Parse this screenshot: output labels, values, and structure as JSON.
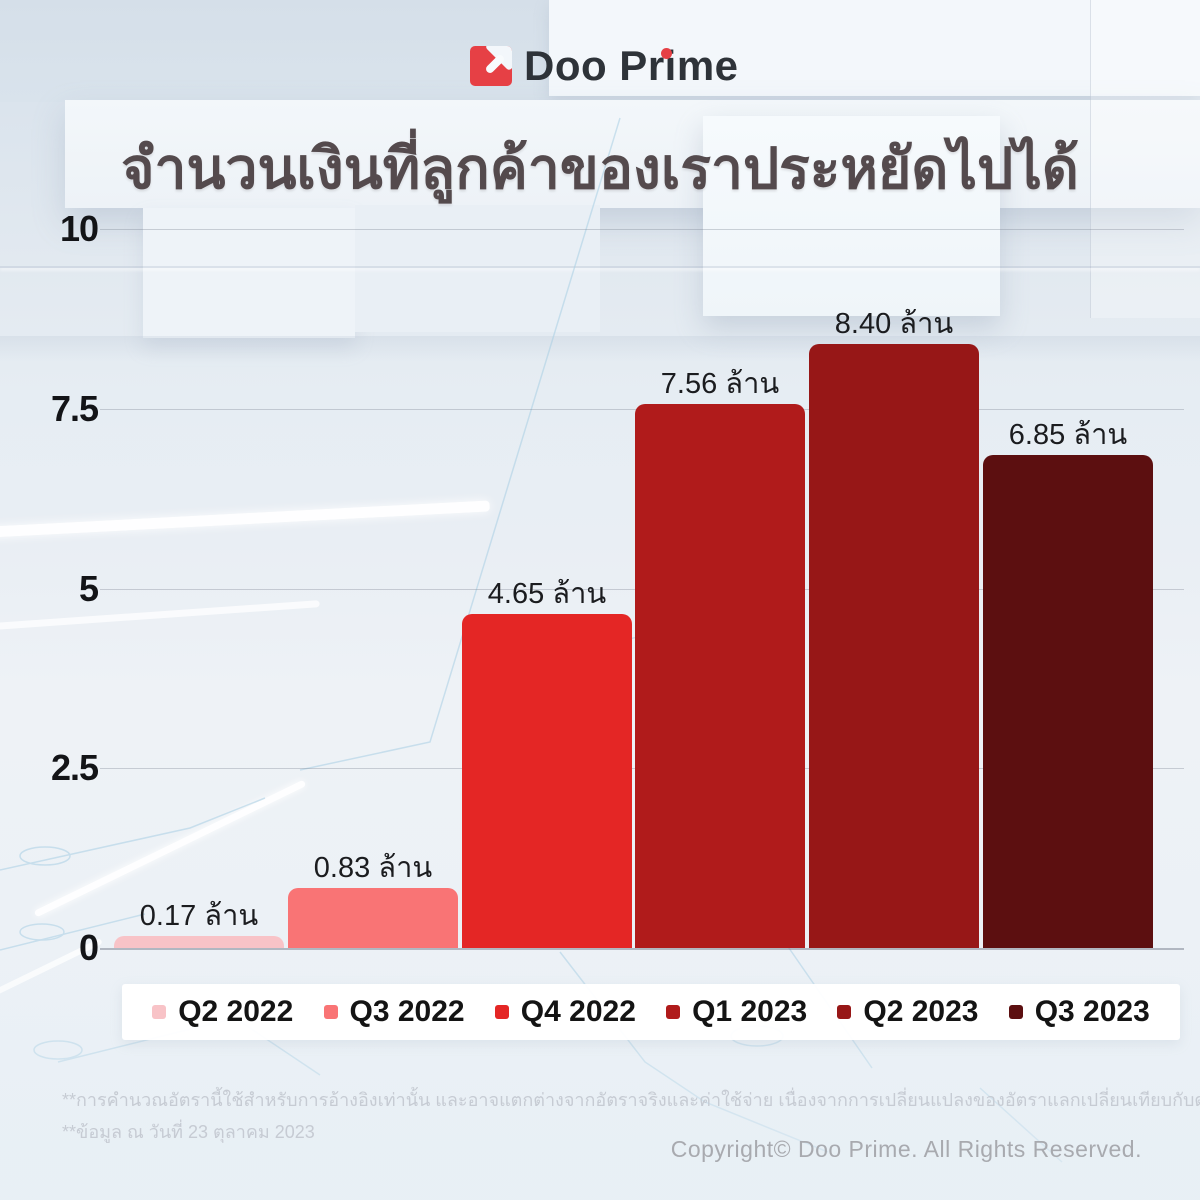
{
  "brand": {
    "name": "Doo Prime"
  },
  "title": "จำนวนเงินที่ลูกค้าของเราประหยัดไปได้",
  "chart_data": {
    "type": "bar",
    "title": "จำนวนเงินที่ลูกค้าของเราประหยัดไปได้",
    "categories": [
      "Q2 2022",
      "Q3 2022",
      "Q4 2022",
      "Q1 2023",
      "Q2 2023",
      "Q3 2023"
    ],
    "values": [
      0.17,
      0.83,
      4.65,
      7.56,
      8.4,
      6.85
    ],
    "value_labels": [
      "0.17 ล้าน",
      "0.83 ล้าน",
      "4.65 ล้าน",
      "7.56 ล้าน",
      "8.40 ล้าน",
      "6.85 ล้าน"
    ],
    "unit": "ล้าน",
    "colors": [
      "#f8c3c7",
      "#f97475",
      "#e42625",
      "#b01b1b",
      "#971717",
      "#5c0f10"
    ],
    "ylim": [
      0,
      10
    ],
    "yticks": [
      10,
      7.5,
      5,
      2.5,
      0
    ],
    "ytick_labels": [
      "10",
      "7.5",
      "5",
      "2.5",
      "0"
    ],
    "grid": true,
    "legend_position": "bottom"
  },
  "footnotes": [
    "**การคำนวณอัตรานี้ใช้สำหรับการอ้างอิงเท่านั้น และอาจแตกต่างจากอัตราจริงและค่าใช้จ่าย เนื่องจากการเปลี่ยนแปลงของอัตราแลกเปลี่ยนเทียบกับดอลลาร์สหรัฐ",
    "**ข้อมูล ณ วันที่ 23 ตุลาคม 2023"
  ],
  "copyright": "Copyright© Doo Prime. All Rights Reserved."
}
